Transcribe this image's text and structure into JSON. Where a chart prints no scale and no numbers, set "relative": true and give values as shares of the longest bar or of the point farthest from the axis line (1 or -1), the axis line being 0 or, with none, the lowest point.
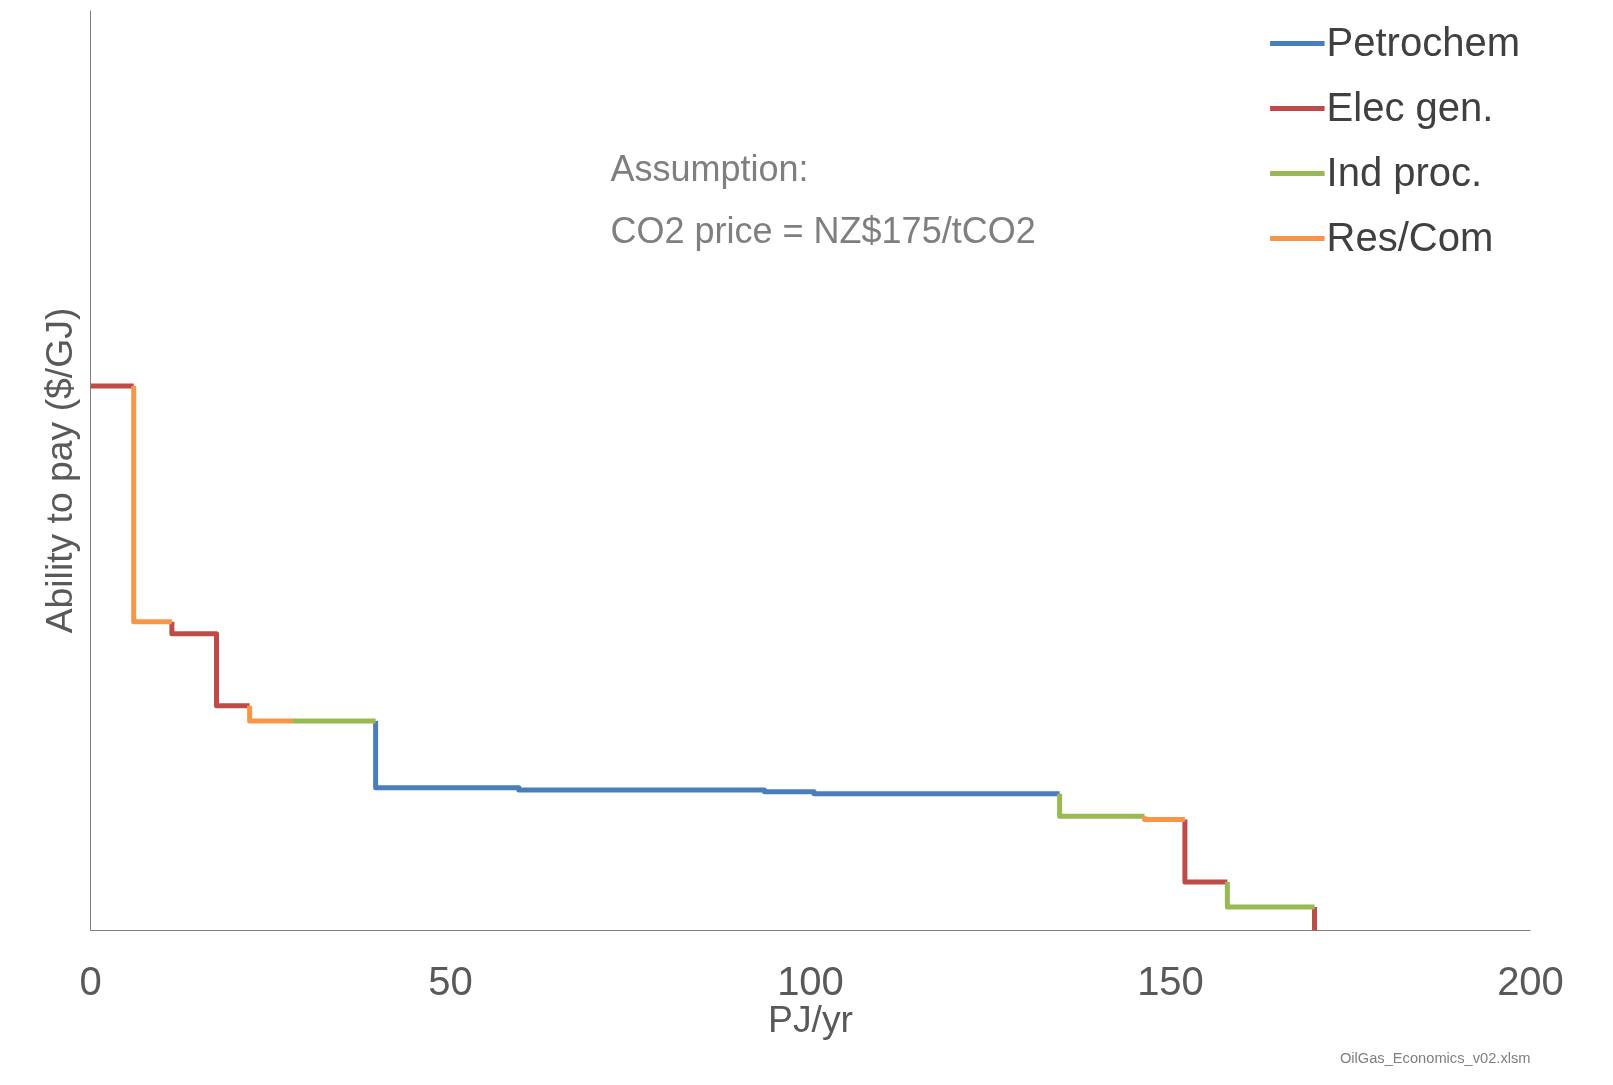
{
  "chart_data": {
    "type": "line",
    "relative": true,
    "xlabel": "PJ/yr",
    "ylabel": "Ability to pay ($/GJ)",
    "xlim": [
      0,
      200
    ],
    "xticks": [
      0,
      50,
      100,
      150,
      200
    ],
    "grid": false,
    "legend": "top right",
    "marker": "none",
    "line_style": "solid",
    "annotations": [
      "Assumption:\nCO2 price = NZ$175/tCO2",
      "OilGas_Economics_v02.xlsm"
    ],
    "series": [
      {
        "name": "Petrochem",
        "color": "#4a7ebb",
        "x": [
          39.6,
          39.6,
          59.5,
          59.5,
          93.6,
          93.6,
          100.5,
          100.5,
          134.6
        ],
        "values": [
          0.385,
          0.262,
          0.262,
          0.258,
          0.258,
          0.255,
          0.255,
          0.251,
          0.251
        ]
      },
      {
        "name": "Elec gen.",
        "color": "#be4b48",
        "x": [
          0,
          6,
          null,
          11.3,
          11.3,
          17.5,
          17.5,
          22.1,
          null,
          152,
          152,
          157.9,
          null,
          170,
          170
        ],
        "values": [
          1,
          1,
          null,
          0.567,
          0.545,
          0.545,
          0.413,
          0.413,
          null,
          0.204,
          0.089,
          0.089,
          null,
          0.043,
          0
        ]
      },
      {
        "name": "Ind proc.",
        "color": "#98b954",
        "x": [
          28,
          39.6,
          null,
          134.6,
          134.6,
          146.4,
          null,
          157.9,
          157.9,
          170
        ],
        "values": [
          0.385,
          0.385,
          null,
          0.251,
          0.21,
          0.21,
          null,
          0.089,
          0.043,
          0.043
        ]
      },
      {
        "name": "Res/Com",
        "color": "#f79646",
        "x": [
          6,
          6,
          11.3,
          null,
          22.1,
          22.1,
          28,
          null,
          146.4,
          146.4,
          152
        ],
        "values": [
          1,
          0.567,
          0.567,
          null,
          0.413,
          0.385,
          0.385,
          null,
          0.21,
          0.204,
          0.204
        ]
      }
    ]
  }
}
